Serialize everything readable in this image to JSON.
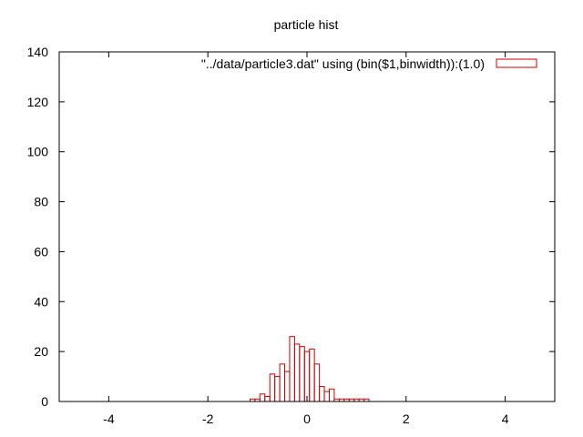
{
  "chart_data": {
    "type": "bar",
    "title": "particle hist",
    "xlabel": "",
    "ylabel": "",
    "xlim": [
      -5,
      5
    ],
    "ylim": [
      0,
      140
    ],
    "xticks": [
      "-4",
      "-2",
      "0",
      "2",
      "4"
    ],
    "yticks": [
      "0",
      "20",
      "40",
      "60",
      "80",
      "100",
      "120",
      "140"
    ],
    "grid": false,
    "legend_position": "top-right",
    "bin_width": 0.1,
    "series": [
      {
        "name": "\"../data/particle3.dat\" using (bin($1,binwidth)):(1.0)",
        "color": "#cc0000",
        "bins": [
          {
            "x": -1.1,
            "count": 1
          },
          {
            "x": -1.0,
            "count": 1
          },
          {
            "x": -0.9,
            "count": 3
          },
          {
            "x": -0.8,
            "count": 2
          },
          {
            "x": -0.7,
            "count": 11
          },
          {
            "x": -0.6,
            "count": 10
          },
          {
            "x": -0.5,
            "count": 15
          },
          {
            "x": -0.4,
            "count": 12
          },
          {
            "x": -0.3,
            "count": 26
          },
          {
            "x": -0.2,
            "count": 23
          },
          {
            "x": -0.1,
            "count": 22
          },
          {
            "x": 0.0,
            "count": 20
          },
          {
            "x": 0.1,
            "count": 21
          },
          {
            "x": 0.2,
            "count": 15
          },
          {
            "x": 0.3,
            "count": 6
          },
          {
            "x": 0.4,
            "count": 4
          },
          {
            "x": 0.5,
            "count": 5
          },
          {
            "x": 0.6,
            "count": 1
          },
          {
            "x": 0.7,
            "count": 1
          },
          {
            "x": 0.8,
            "count": 1
          },
          {
            "x": 0.9,
            "count": 1
          },
          {
            "x": 1.0,
            "count": 1
          },
          {
            "x": 1.1,
            "count": 1
          },
          {
            "x": 1.2,
            "count": 1
          }
        ]
      }
    ]
  }
}
